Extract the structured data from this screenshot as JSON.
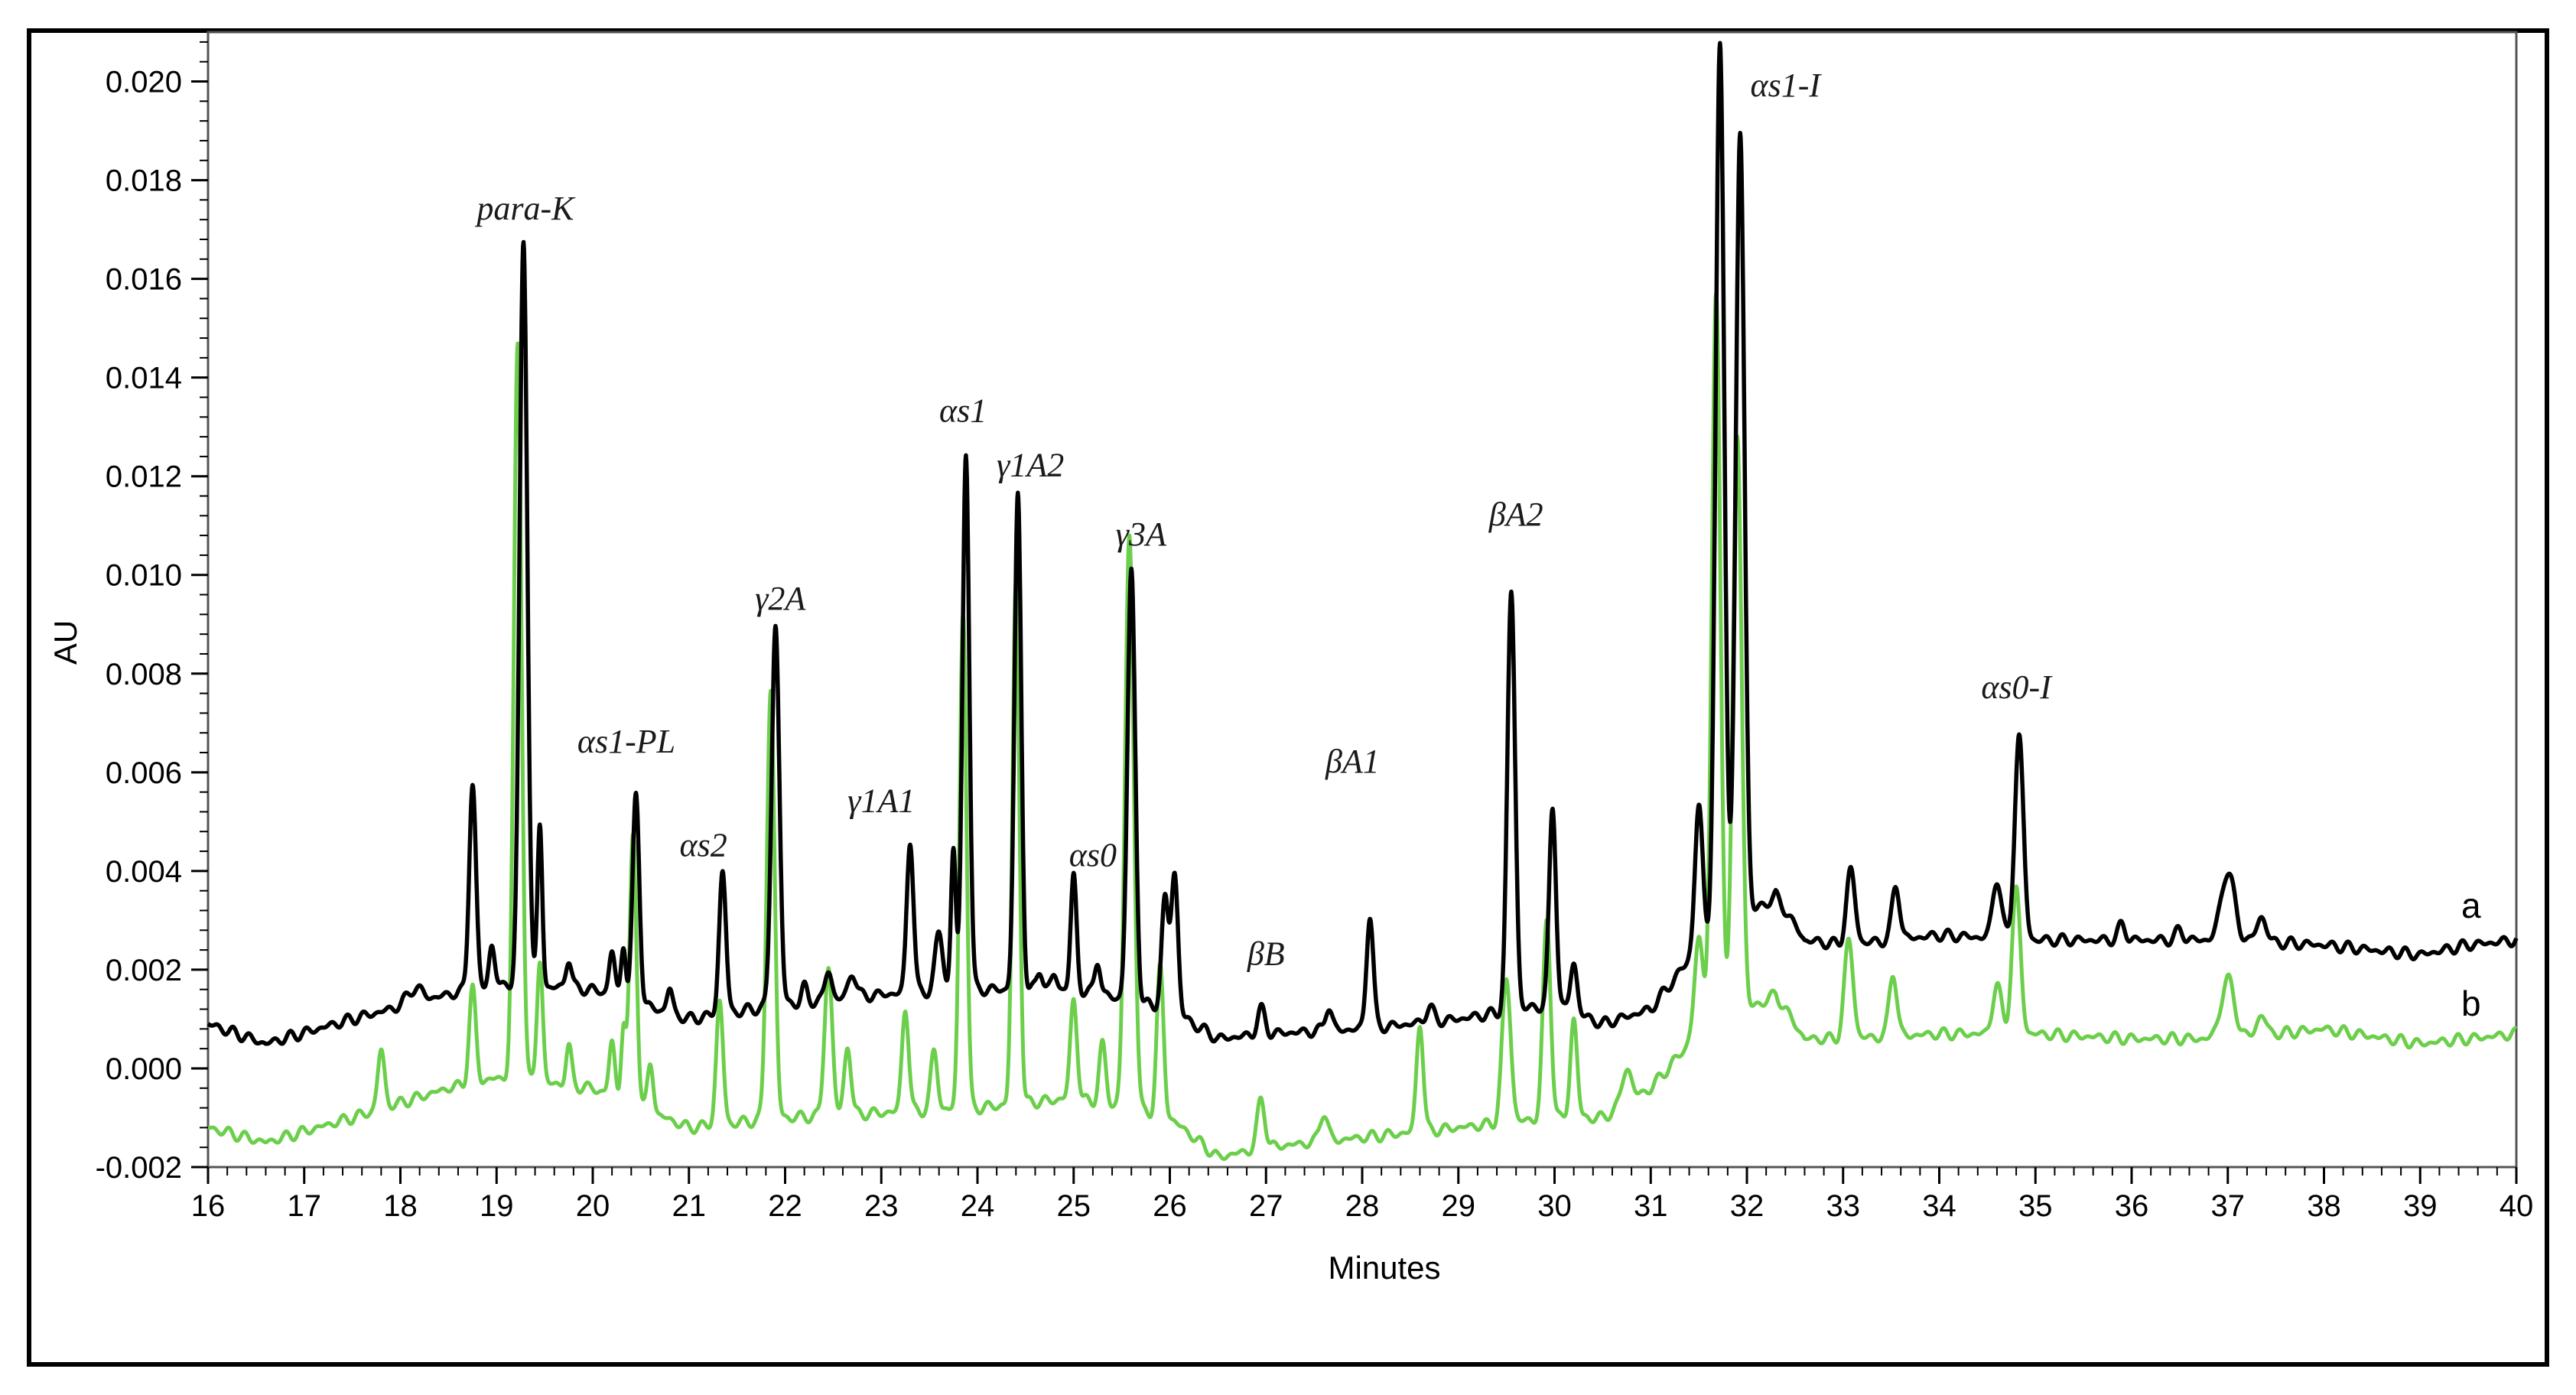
{
  "chart_data": {
    "type": "line",
    "xlabel": "Minutes",
    "ylabel": "AU",
    "xlim": [
      16,
      40
    ],
    "ylim": [
      -0.002,
      0.021
    ],
    "x_ticks": [
      "16",
      "17",
      "18",
      "19",
      "20",
      "21",
      "22",
      "23",
      "24",
      "25",
      "26",
      "27",
      "28",
      "29",
      "30",
      "31",
      "32",
      "33",
      "34",
      "35",
      "36",
      "37",
      "38",
      "39",
      "40"
    ],
    "y_ticks": [
      "-0.002",
      "0.000",
      "0.002",
      "0.004",
      "0.006",
      "0.008",
      "0.010",
      "0.012",
      "0.014",
      "0.016",
      "0.018",
      "0.020"
    ],
    "grid": false,
    "legend": "none",
    "colors": {
      "a": "#000000",
      "b": "#6ccf4b"
    },
    "series": [
      {
        "name": "a",
        "baseline": [
          [
            16,
            0.0009
          ],
          [
            16.6,
            0.0005
          ],
          [
            17.5,
            0.001
          ],
          [
            18.5,
            0.0015
          ],
          [
            19.0,
            0.0017
          ],
          [
            20.0,
            0.0016
          ],
          [
            21.0,
            0.001
          ],
          [
            22.0,
            0.0013
          ],
          [
            23.0,
            0.0015
          ],
          [
            24.0,
            0.0016
          ],
          [
            25.0,
            0.0016
          ],
          [
            26.0,
            0.0012
          ],
          [
            26.5,
            0.0006
          ],
          [
            27.0,
            0.0007
          ],
          [
            28.0,
            0.0008
          ],
          [
            29.0,
            0.001
          ],
          [
            30.0,
            0.0013
          ],
          [
            30.5,
            0.0009
          ],
          [
            31.0,
            0.0012
          ],
          [
            31.4,
            0.0022
          ],
          [
            32.3,
            0.0035
          ],
          [
            32.6,
            0.0026
          ],
          [
            33.0,
            0.0025
          ],
          [
            34.0,
            0.0027
          ],
          [
            35.0,
            0.0026
          ],
          [
            36.0,
            0.0026
          ],
          [
            37.0,
            0.0026
          ],
          [
            38.0,
            0.0025
          ],
          [
            39.0,
            0.0023
          ],
          [
            39.5,
            0.0025
          ],
          [
            40.0,
            0.0026
          ]
        ],
        "peaks": [
          [
            18.15,
            0.0003,
            0.08
          ],
          [
            18.75,
            0.0042,
            0.035
          ],
          [
            18.95,
            0.0008,
            0.03
          ],
          [
            19.28,
            0.0151,
            0.04
          ],
          [
            19.45,
            0.0033,
            0.025
          ],
          [
            19.75,
            0.0006,
            0.03
          ],
          [
            20.2,
            0.0009,
            0.03
          ],
          [
            20.32,
            0.0011,
            0.025
          ],
          [
            20.45,
            0.0042,
            0.035
          ],
          [
            20.8,
            0.0005,
            0.03
          ],
          [
            21.35,
            0.0029,
            0.035
          ],
          [
            21.9,
            0.0077,
            0.04
          ],
          [
            22.2,
            0.0003,
            0.03
          ],
          [
            22.45,
            0.0006,
            0.035
          ],
          [
            22.7,
            0.0005,
            0.04
          ],
          [
            23.3,
            0.0031,
            0.035
          ],
          [
            23.6,
            0.0012,
            0.04
          ],
          [
            23.75,
            0.0029,
            0.025
          ],
          [
            23.88,
            0.0109,
            0.035
          ],
          [
            24.42,
            0.01,
            0.035
          ],
          [
            24.65,
            0.0004,
            0.03
          ],
          [
            24.8,
            0.0003,
            0.03
          ],
          [
            25.0,
            0.0023,
            0.03
          ],
          [
            25.25,
            0.0007,
            0.03
          ],
          [
            25.6,
            0.0087,
            0.04
          ],
          [
            25.95,
            0.0022,
            0.035
          ],
          [
            26.05,
            0.0028,
            0.035
          ],
          [
            26.95,
            0.0005,
            0.04
          ],
          [
            27.65,
            0.0005,
            0.035
          ],
          [
            28.08,
            0.0023,
            0.035
          ],
          [
            28.7,
            0.0003,
            0.04
          ],
          [
            29.55,
            0.0085,
            0.04
          ],
          [
            29.98,
            0.004,
            0.035
          ],
          [
            30.2,
            0.001,
            0.035
          ],
          [
            31.5,
            0.003,
            0.04
          ],
          [
            31.72,
            0.018,
            0.045
          ],
          [
            31.93,
            0.016,
            0.045
          ],
          [
            33.08,
            0.0015,
            0.045
          ],
          [
            33.55,
            0.0011,
            0.04
          ],
          [
            34.6,
            0.0012,
            0.045
          ],
          [
            34.83,
            0.0041,
            0.045
          ],
          [
            35.9,
            0.0003,
            0.04
          ],
          [
            36.5,
            0.0002,
            0.04
          ],
          [
            37.0,
            0.0014,
            0.07
          ],
          [
            37.35,
            0.0005,
            0.05
          ]
        ]
      },
      {
        "name": "b",
        "baseline": [
          [
            16,
            -0.0012
          ],
          [
            16.6,
            -0.0015
          ],
          [
            17.5,
            -0.001
          ],
          [
            18.5,
            -0.0004
          ],
          [
            19.0,
            -0.0002
          ],
          [
            20.0,
            -0.0004
          ],
          [
            21.0,
            -0.0012
          ],
          [
            22.0,
            -0.001
          ],
          [
            23.0,
            -0.0009
          ],
          [
            24.0,
            -0.0008
          ],
          [
            25.0,
            -0.0006
          ],
          [
            26.0,
            -0.001
          ],
          [
            26.5,
            -0.0018
          ],
          [
            27.0,
            -0.0016
          ],
          [
            28.0,
            -0.0014
          ],
          [
            29.0,
            -0.0012
          ],
          [
            30.0,
            -0.001
          ],
          [
            30.5,
            -0.001
          ],
          [
            31.0,
            -0.0004
          ],
          [
            31.4,
            0.0005
          ],
          [
            32.3,
            0.0015
          ],
          [
            32.6,
            0.0006
          ],
          [
            33.0,
            0.0006
          ],
          [
            34.0,
            0.0007
          ],
          [
            35.0,
            0.0007
          ],
          [
            36.0,
            0.0006
          ],
          [
            37.0,
            0.0006
          ],
          [
            38.0,
            0.0008
          ],
          [
            39.0,
            0.0005
          ],
          [
            39.5,
            0.0006
          ],
          [
            40.0,
            0.0007
          ]
        ],
        "peaks": [
          [
            17.8,
            0.0012,
            0.035
          ],
          [
            18.75,
            0.0019,
            0.035
          ],
          [
            19.22,
            0.0149,
            0.04
          ],
          [
            19.45,
            0.0025,
            0.03
          ],
          [
            19.75,
            0.0008,
            0.03
          ],
          [
            20.2,
            0.0011,
            0.03
          ],
          [
            20.32,
            0.0015,
            0.025
          ],
          [
            20.42,
            0.0055,
            0.035
          ],
          [
            20.6,
            0.001,
            0.03
          ],
          [
            21.32,
            0.0025,
            0.035
          ],
          [
            21.85,
            0.0087,
            0.04
          ],
          [
            22.45,
            0.003,
            0.04
          ],
          [
            22.65,
            0.0014,
            0.035
          ],
          [
            23.25,
            0.0021,
            0.035
          ],
          [
            23.55,
            0.0012,
            0.035
          ],
          [
            23.85,
            0.0101,
            0.035
          ],
          [
            24.4,
            0.0106,
            0.035
          ],
          [
            25.0,
            0.002,
            0.035
          ],
          [
            25.3,
            0.0012,
            0.035
          ],
          [
            25.58,
            0.0116,
            0.045
          ],
          [
            25.9,
            0.003,
            0.035
          ],
          [
            26.95,
            0.001,
            0.04
          ],
          [
            27.6,
            0.0006,
            0.04
          ],
          [
            28.6,
            0.0022,
            0.035
          ],
          [
            29.5,
            0.0029,
            0.045
          ],
          [
            29.92,
            0.004,
            0.04
          ],
          [
            30.2,
            0.002,
            0.035
          ],
          [
            30.75,
            0.0007,
            0.05
          ],
          [
            31.5,
            0.002,
            0.045
          ],
          [
            31.68,
            0.0148,
            0.045
          ],
          [
            31.9,
            0.0118,
            0.045
          ],
          [
            33.06,
            0.002,
            0.045
          ],
          [
            33.52,
            0.0013,
            0.04
          ],
          [
            34.6,
            0.001,
            0.045
          ],
          [
            34.8,
            0.0029,
            0.045
          ],
          [
            37.0,
            0.0012,
            0.07
          ],
          [
            37.35,
            0.0004,
            0.05
          ]
        ]
      }
    ],
    "annotations": [
      {
        "text": "para-K",
        "x": 19.3,
        "y": 0.0172
      },
      {
        "text": "αs1-PL",
        "x": 20.35,
        "y": 0.0064
      },
      {
        "text": "αs2",
        "x": 21.15,
        "y": 0.0043
      },
      {
        "text": "γ2A",
        "x": 21.95,
        "y": 0.0093
      },
      {
        "text": "γ1A1",
        "x": 23.0,
        "y": 0.0052
      },
      {
        "text": "αs1",
        "x": 23.85,
        "y": 0.0131
      },
      {
        "text": "γ1A2",
        "x": 24.55,
        "y": 0.012
      },
      {
        "text": "αs0",
        "x": 25.2,
        "y": 0.0041
      },
      {
        "text": "γ3A",
        "x": 25.7,
        "y": 0.0106
      },
      {
        "text": "βB",
        "x": 27.0,
        "y": 0.0021
      },
      {
        "text": "βA1",
        "x": 27.9,
        "y": 0.006
      },
      {
        "text": "βA2",
        "x": 29.6,
        "y": 0.011
      },
      {
        "text": "αs1-I",
        "x": 32.4,
        "y": 0.0197
      },
      {
        "text": "αs0-I",
        "x": 34.8,
        "y": 0.0075
      }
    ]
  }
}
